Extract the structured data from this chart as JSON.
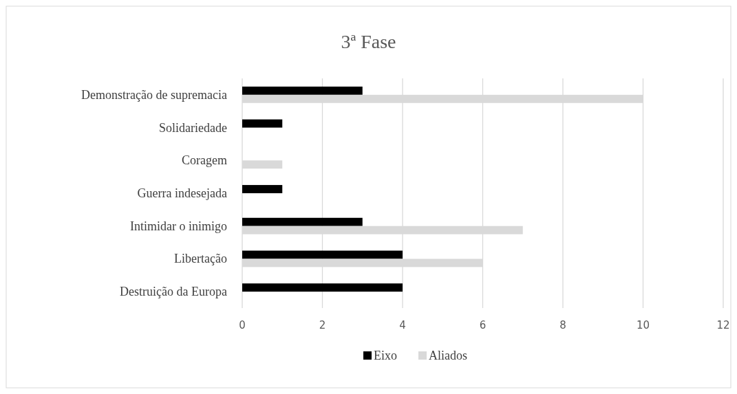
{
  "chart_data": {
    "type": "bar",
    "title": "3ª Fase",
    "orientation": "horizontal",
    "categories": [
      "Demonstração de supremacia",
      "Solidariedade",
      "Coragem",
      "Guerra indesejada",
      "Intimidar o inimigo",
      "Libertação",
      "Destruição da Europa"
    ],
    "series": [
      {
        "name": "Eixo",
        "color": "#000000",
        "values": [
          3,
          1,
          null,
          1,
          3,
          4,
          4
        ]
      },
      {
        "name": "Aliados",
        "color": "#d9d9d9",
        "values": [
          10,
          null,
          1,
          null,
          7,
          6,
          null
        ]
      }
    ],
    "xlim": [
      0,
      12
    ],
    "xticks": [
      0,
      2,
      4,
      6,
      8,
      10,
      12
    ],
    "grid": "x",
    "legend": "bottom"
  }
}
